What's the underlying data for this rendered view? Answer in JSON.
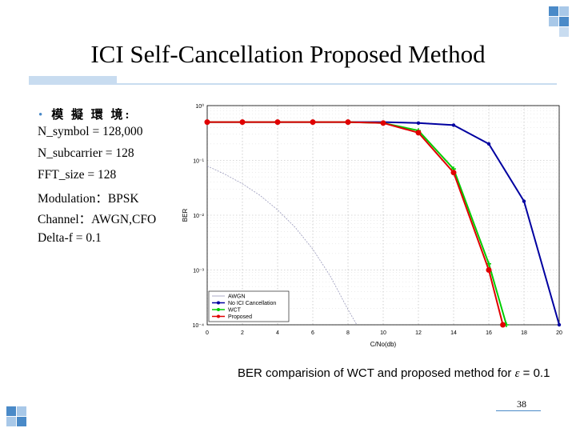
{
  "slide": {
    "title": "ICI Self-Cancellation Proposed Method",
    "bullet_heading": "模 擬 環 境:",
    "params": [
      "N_symbol = 128,000",
      "N_subcarrier = 128",
      "FFT_size = 128",
      "Modulation：BPSK",
      "Channel：AWGN,CFO",
      "Delta-f = 0.1"
    ],
    "caption_prefix": "BER comparision of WCT and proposed method for ",
    "caption_symbol": "ε",
    "caption_suffix": " = 0.1",
    "page_number": "38",
    "accent_color": "#c8dcf0",
    "decor_color": "#4a8ac8"
  },
  "chart_data": {
    "type": "line",
    "xlabel": "C/No(db)",
    "ylabel": "BER",
    "xlim": [
      0,
      20
    ],
    "ylim": [
      0.0001,
      1
    ],
    "yscale": "log",
    "xticks": [
      "0",
      "2",
      "4",
      "6",
      "8",
      "10",
      "12",
      "14",
      "16",
      "18",
      "20"
    ],
    "yticks": [
      "10⁰",
      "10⁻¹",
      "10⁻²",
      "10⁻³",
      "10⁻⁴"
    ],
    "grid": true,
    "legend_position": "bottom-left",
    "series": [
      {
        "name": "AWGN",
        "color": "#9999bb",
        "marker": "none",
        "x": [
          0,
          1,
          2,
          3,
          4,
          5,
          6,
          7,
          8,
          8.5
        ],
        "y": [
          0.079,
          0.056,
          0.0375,
          0.023,
          0.0125,
          0.006,
          0.0024,
          0.00077,
          0.00019,
          0.0001
        ]
      },
      {
        "name": "No ICI Cancellation",
        "color": "#0000a0",
        "marker": "dot",
        "x": [
          0,
          2,
          4,
          6,
          8,
          10,
          12,
          14,
          16,
          18,
          20
        ],
        "y": [
          0.5,
          0.5,
          0.5,
          0.5,
          0.5,
          0.5,
          0.48,
          0.44,
          0.2,
          0.018,
          0.0001
        ]
      },
      {
        "name": "WCT",
        "color": "#00cc00",
        "marker": "cross",
        "x": [
          0,
          2,
          4,
          6,
          8,
          10,
          12,
          14,
          16,
          17
        ],
        "y": [
          0.5,
          0.5,
          0.5,
          0.5,
          0.5,
          0.48,
          0.35,
          0.07,
          0.0013,
          0.0001
        ]
      },
      {
        "name": "Proposed",
        "color": "#e00000",
        "marker": "circle",
        "x": [
          0,
          2,
          4,
          6,
          8,
          10,
          12,
          14,
          16,
          16.8
        ],
        "y": [
          0.5,
          0.5,
          0.5,
          0.5,
          0.5,
          0.48,
          0.32,
          0.06,
          0.001,
          0.0001
        ]
      }
    ]
  }
}
